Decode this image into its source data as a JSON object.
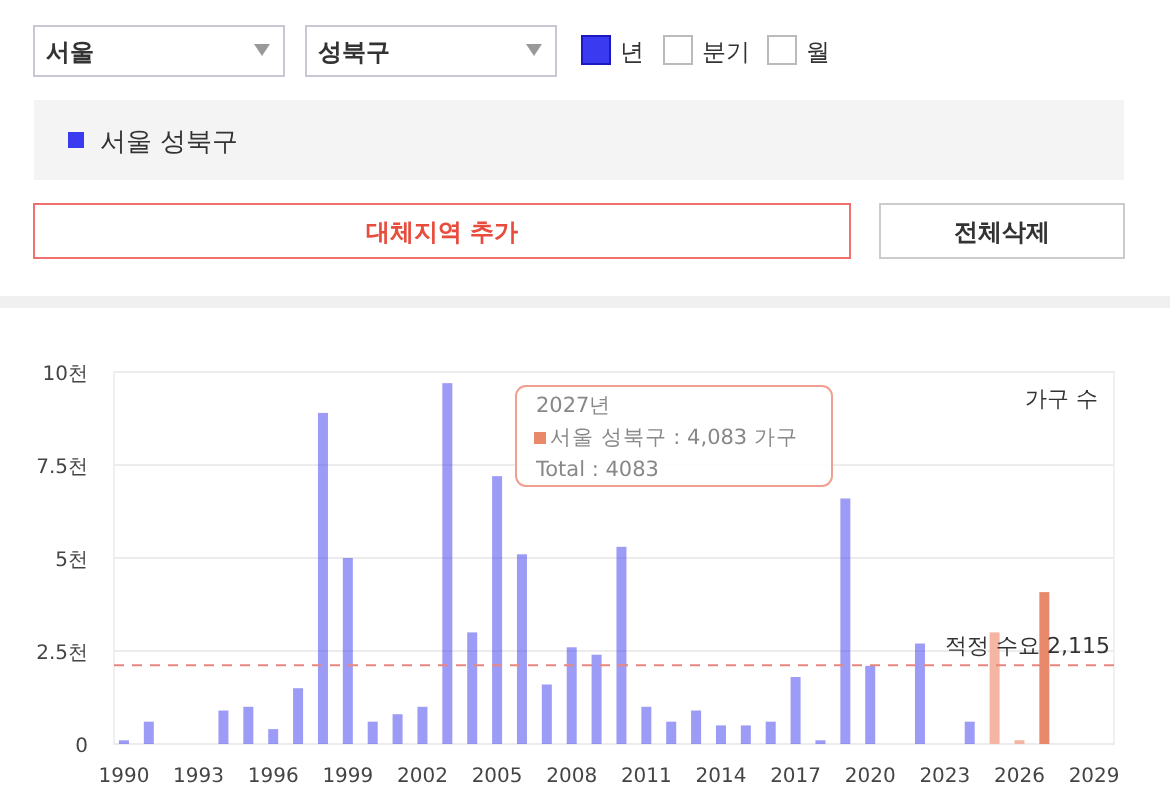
{
  "chart_data": {
    "type": "bar",
    "ylabel": "가구 수",
    "x": [
      1990,
      1991,
      1994,
      1995,
      1996,
      1997,
      1998,
      1999,
      2000,
      2001,
      2002,
      2003,
      2004,
      2005,
      2006,
      2007,
      2008,
      2009,
      2010,
      2011,
      2012,
      2013,
      2014,
      2015,
      2016,
      2017,
      2018,
      2019,
      2020,
      2022,
      2024,
      2025,
      2026,
      2027
    ],
    "series": [
      {
        "name": "서울 성북구",
        "color": "#3a3af0",
        "values": [
          0.1,
          0.6,
          0.9,
          1.0,
          0.4,
          1.5,
          8.9,
          5.0,
          0.6,
          0.8,
          1.0,
          9.7,
          3.0,
          7.2,
          5.1,
          1.6,
          2.6,
          2.4,
          5.3,
          1.0,
          0.6,
          0.9,
          0.5,
          0.5,
          0.6,
          1.8,
          0.1,
          6.6,
          2.1,
          2.7,
          0.6,
          3.0,
          0.1,
          4.083
        ],
        "colors": [
          "#3a3af0",
          "#3a3af0",
          "#3a3af0",
          "#3a3af0",
          "#3a3af0",
          "#3a3af0",
          "#3a3af0",
          "#3a3af0",
          "#3a3af0",
          "#3a3af0",
          "#3a3af0",
          "#3a3af0",
          "#3a3af0",
          "#3a3af0",
          "#3a3af0",
          "#3a3af0",
          "#3a3af0",
          "#3a3af0",
          "#3a3af0",
          "#3a3af0",
          "#3a3af0",
          "#3a3af0",
          "#3a3af0",
          "#3a3af0",
          "#3a3af0",
          "#3a3af0",
          "#3a3af0",
          "#3a3af0",
          "#3a3af0",
          "#3a3af0",
          "#3a3af0",
          "#f4b5a3",
          "#f4b5a3",
          "#e8896b"
        ]
      }
    ],
    "xlim": [
      1989.6,
      2029.8
    ],
    "xticks": [
      1990,
      1993,
      1996,
      1999,
      2002,
      2005,
      2008,
      2011,
      2014,
      2017,
      2020,
      2023,
      2026,
      2029
    ],
    "ylim": [
      0,
      10
    ],
    "yticks": [
      {
        "value": 0,
        "label": "0"
      },
      {
        "value": 2.5,
        "label": "2.5천"
      },
      {
        "value": 5,
        "label": "5천"
      },
      {
        "value": 7.5,
        "label": "7.5천"
      },
      {
        "value": 10,
        "label": "10천"
      }
    ],
    "grid": "y",
    "legend": "top",
    "ref_lines": [
      {
        "axis": "y",
        "value": 2.115,
        "label": "적정 수요 2,115",
        "color": "#e8877f",
        "line_style": "dashed"
      }
    ],
    "annotations": [
      "서울",
      "성북구",
      "년",
      "분기",
      "월",
      "대체지역 추가",
      "전체삭제",
      "2027년",
      "서울 성북구 : 4,083 가구",
      "Total : 4083"
    ]
  }
}
